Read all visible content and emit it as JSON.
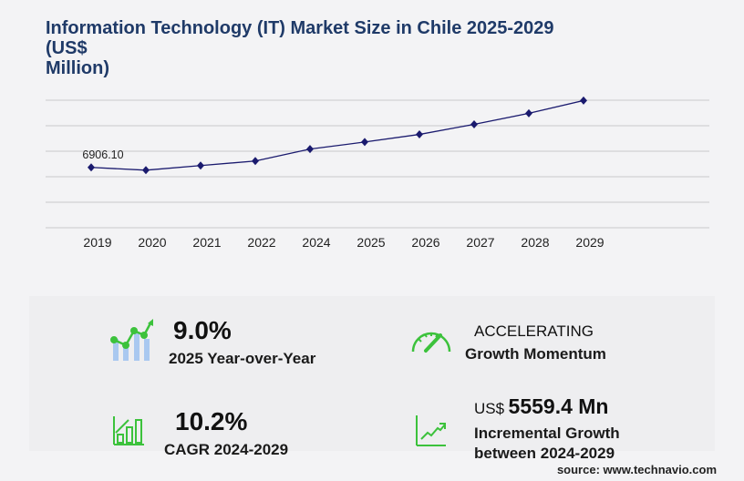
{
  "title": "Information Technology (IT) Market Size in Chile 2025-2029 (US$ Million)",
  "title_lines": [
    "Information Technology (IT) Market Size in Chile 2025-2029",
    "(US$",
    "Million)"
  ],
  "chart_data": {
    "type": "line",
    "categories": [
      "2019",
      "2020",
      "2021",
      "2022",
      "2024",
      "2025",
      "2026",
      "2027",
      "2028",
      "2029"
    ],
    "values": [
      6906.1,
      6590,
      7115,
      7640,
      9004,
      9814,
      10683,
      11837,
      13096,
      14563
    ],
    "data_labels": [
      {
        "category": "2019",
        "label": "6906.10"
      }
    ],
    "ylim": [
      0,
      14600
    ],
    "grid": true,
    "line_color": "#1a1a6e",
    "marker": "diamond"
  },
  "stats": {
    "yoy_value": "9.0%",
    "yoy_label": "2025 Year-over-Year",
    "momentum_value": "ACCELERATING",
    "momentum_label": "Growth Momentum",
    "cagr_value": "10.2%",
    "cagr_label": "CAGR 2024-2029",
    "incr_prefix": "US$",
    "incr_value": "5559.4 Mn",
    "incr_label_1": "Incremental Growth",
    "incr_label_2": "between 2024-2029"
  },
  "source": "source: www.technavio.com",
  "colors": {
    "title": "#1f3a68",
    "accent_green": "#3cc23c",
    "bar_blue": "#a9c8f0"
  }
}
